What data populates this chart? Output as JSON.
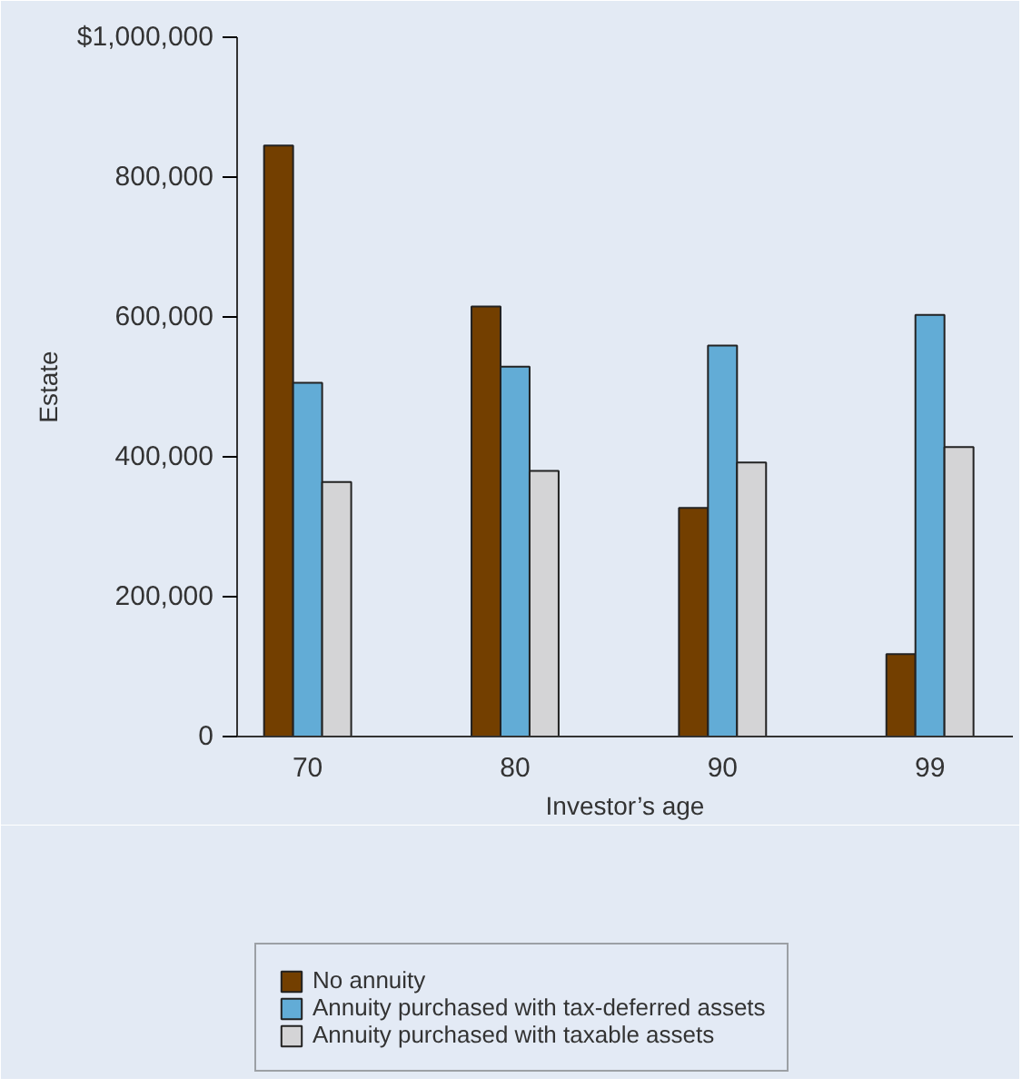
{
  "chart_data": {
    "type": "bar",
    "xlabel": "Investor’s age",
    "ylabel": "Estate",
    "categories": [
      "70",
      "80",
      "90",
      "99"
    ],
    "series": [
      {
        "name": "No annuity",
        "color": "#733f00",
        "values": [
          845000,
          615000,
          327000,
          118000
        ]
      },
      {
        "name": "Annuity purchased with tax-deferred assets",
        "color": "#62acd6",
        "values": [
          506000,
          529000,
          559000,
          603000
        ]
      },
      {
        "name": "Annuity purchased with taxable assets",
        "color": "#d4d4d6",
        "values": [
          364000,
          380000,
          392000,
          414000
        ]
      }
    ],
    "ylim": [
      0,
      1000000
    ],
    "yticks": [
      0,
      {
        "value": 200000,
        "label": "200,000"
      },
      {
        "value": 400000,
        "label": "400,000"
      },
      {
        "value": 600000,
        "label": "600,000"
      },
      {
        "value": 800000,
        "label": "800,000"
      },
      {
        "value": 1000000,
        "label": "$1,000,000"
      }
    ],
    "grid": false,
    "legend": "bottom"
  }
}
